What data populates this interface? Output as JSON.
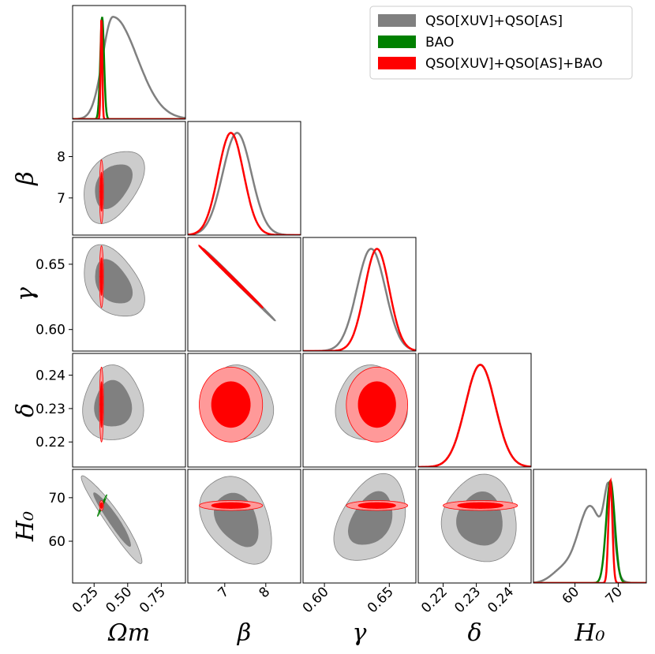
{
  "chart_data": {
    "type": "corner",
    "parameters": [
      {
        "key": "Om",
        "label": "Ωm",
        "ticks": [
          0.25,
          0.5,
          0.75
        ],
        "tick_labels": [
          "0.25",
          "0.50",
          "0.75"
        ]
      },
      {
        "key": "beta",
        "label": "β",
        "ticks": [
          7,
          8
        ],
        "tick_labels": [
          "7",
          "8"
        ]
      },
      {
        "key": "gamma",
        "label": "γ",
        "ticks": [
          0.6,
          0.65
        ],
        "tick_labels": [
          "0.60",
          "0.65"
        ]
      },
      {
        "key": "delta",
        "label": "δ",
        "ticks": [
          0.22,
          0.23,
          0.24
        ],
        "tick_labels": [
          "0.22",
          "0.23",
          "0.24"
        ]
      },
      {
        "key": "H0",
        "label": "H₀",
        "ticks": [
          60,
          70
        ],
        "tick_labels": [
          "60",
          "70"
        ]
      }
    ],
    "ranges": {
      "Om": [
        0.09,
        0.93
      ],
      "beta": [
        6.1,
        8.85
      ],
      "gamma": [
        0.5835,
        0.6705
      ],
      "delta": [
        0.2125,
        0.2465
      ],
      "H0": [
        50.4,
        76.5
      ]
    },
    "legend": {
      "position": "top-right",
      "entries": [
        {
          "label": "QSO[XUV]+QSO[AS]",
          "color": "#808080"
        },
        {
          "label": "BAO",
          "color": "#008000"
        },
        {
          "label": "QSO[XUV]+QSO[AS]+BAO",
          "color": "#ff0000"
        }
      ]
    },
    "series": [
      {
        "name": "QSO[XUV]+QSO[AS]",
        "color": "#808080",
        "mean": {
          "Om": 0.39,
          "beta": 7.3,
          "gamma": 0.636,
          "delta": 0.2312,
          "H0": 65.0
        },
        "sigma": {
          "Om": 0.09,
          "beta": 0.35,
          "gamma": 0.011,
          "delta": 0.0045,
          "H0": 4.0
        },
        "corr": {
          "Om-beta": 0.4,
          "Om-gamma": -0.4,
          "Om-H0": -0.95,
          "beta-gamma": -0.999,
          "beta-H0": -0.35,
          "gamma-H0": 0.35
        }
      },
      {
        "name": "BAO",
        "color": "#008000",
        "mean": {
          "Om": 0.31,
          "H0": 68.2
        },
        "sigma": {
          "Om": 0.014,
          "H0": 1.0
        },
        "corr": {
          "Om-H0": 0.98
        }
      },
      {
        "name": "QSO[XUV]+QSO[AS]+BAO",
        "color": "#ff0000",
        "mean": {
          "Om": 0.305,
          "beta": 7.15,
          "gamma": 0.6405,
          "delta": 0.2312,
          "H0": 68.2
        },
        "sigma": {
          "Om": 0.006,
          "beta": 0.31,
          "gamma": 0.0095,
          "delta": 0.0045,
          "H0": 0.45
        },
        "corr": {
          "beta-gamma": -0.999
        }
      }
    ]
  }
}
